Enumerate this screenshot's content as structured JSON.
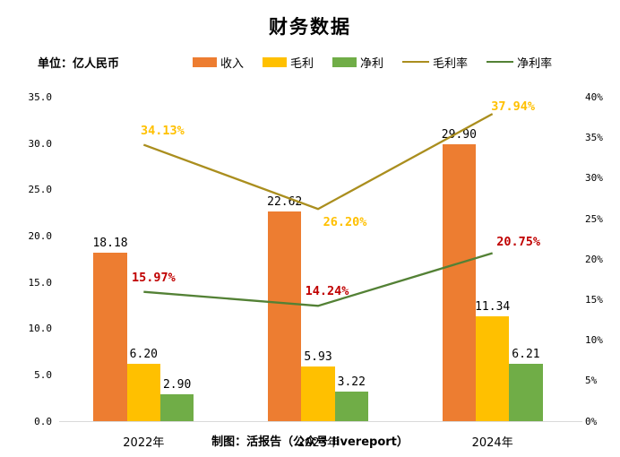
{
  "title": "财务数据",
  "unit_label": "单位：亿人民币",
  "credit": "制图：活报告（公众号 livereport）",
  "colors": {
    "revenue_bar": "#ED7D31",
    "gross_profit_bar": "#FFC000",
    "net_profit_bar": "#70AD47",
    "gross_margin_line": "#AA8E1E",
    "net_margin_line": "#538135",
    "gross_margin_label": "#FFC000",
    "net_margin_label": "#C00000",
    "axis_line": "#D9D9D9",
    "text": "#000000"
  },
  "legend": [
    {
      "label": "收入",
      "type": "rect",
      "color": "#ED7D31"
    },
    {
      "label": "毛利",
      "type": "rect",
      "color": "#FFC000"
    },
    {
      "label": "净利",
      "type": "rect",
      "color": "#70AD47"
    },
    {
      "label": "毛利率",
      "type": "line",
      "color": "#AA8E1E"
    },
    {
      "label": "净利率",
      "type": "line",
      "color": "#538135"
    }
  ],
  "chart_data": {
    "type": "bar",
    "subtype": "combo bar + line, dual axis",
    "title": "财务数据",
    "categories": [
      "2022年",
      "2023年",
      "2024年"
    ],
    "bar_series": [
      {
        "name": "收入",
        "color": "#ED7D31",
        "values": [
          18.18,
          22.62,
          29.9
        ],
        "labels": [
          "18.18",
          "22.62",
          "29.90"
        ]
      },
      {
        "name": "毛利",
        "color": "#FFC000",
        "values": [
          6.2,
          5.93,
          11.34
        ],
        "labels": [
          "6.20",
          "5.93",
          "11.34"
        ]
      },
      {
        "name": "净利",
        "color": "#70AD47",
        "values": [
          2.9,
          3.22,
          6.21
        ],
        "labels": [
          "2.90",
          "3.22",
          "6.21"
        ]
      }
    ],
    "line_series": [
      {
        "name": "毛利率",
        "color": "#AA8E1E",
        "label_color": "#FFC000",
        "values_pct": [
          34.13,
          26.2,
          37.94
        ],
        "labels": [
          "34.13%",
          "26.20%",
          "37.94%"
        ]
      },
      {
        "name": "净利率",
        "color": "#538135",
        "label_color": "#C00000",
        "values_pct": [
          15.97,
          14.24,
          20.75
        ],
        "labels": [
          "15.97%",
          "14.24%",
          "20.75%"
        ]
      }
    ],
    "left_axis": {
      "min": 0,
      "max": 35,
      "step": 5,
      "ticks": [
        "35.0",
        "30.0",
        "25.0",
        "20.0",
        "15.0",
        "10.0",
        "5.0",
        "0.0"
      ]
    },
    "right_axis": {
      "min": 0,
      "max": 40,
      "step": 5,
      "ticks": [
        "40%",
        "35%",
        "30%",
        "25%",
        "20%",
        "15%",
        "10%",
        "5%",
        "0%"
      ]
    },
    "grid": "off",
    "legend_position": "top"
  }
}
